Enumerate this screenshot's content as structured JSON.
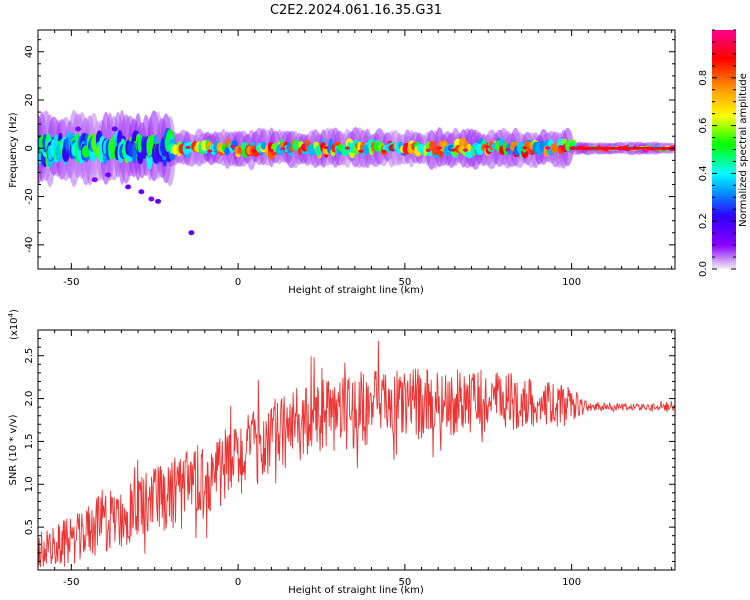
{
  "chart_data": [
    {
      "type": "heatmap",
      "title": "C2E2.2024.061.16.35.G31",
      "xlabel": "Height of straight line (km)",
      "ylabel": "Frequency (Hz)",
      "xlim": [
        -60,
        131
      ],
      "ylim": [
        -50,
        49
      ],
      "xticks": [
        -50,
        0,
        50,
        100
      ],
      "yticks": [
        -40,
        -20,
        0,
        20,
        40
      ],
      "colorbar": {
        "label": "Normalized spectral amplitude",
        "range": [
          0.0,
          1.0
        ],
        "ticks": [
          0.0,
          0.2,
          0.4,
          0.6,
          0.8
        ],
        "colormap": [
          "#f0f0f0",
          "#8a00ff",
          "#3000ff",
          "#0090ff",
          "#00ffff",
          "#00ff00",
          "#ffff00",
          "#ff9000",
          "#ff0000",
          "#ff0090"
        ]
      },
      "ridge": {
        "description_center_frequency_hz": 0,
        "segments": [
          {
            "x": [
              -60,
              -20
            ],
            "spread_hz": 8,
            "peak_amplitude": 0.55
          },
          {
            "x": [
              -20,
              100
            ],
            "spread_hz": 4,
            "peak_amplitude": 0.85
          },
          {
            "x": [
              100,
              131
            ],
            "spread_hz": 1,
            "peak_amplitude": 0.95
          }
        ],
        "scatter_points": [
          {
            "x": -43,
            "y": -13
          },
          {
            "x": -39,
            "y": -11
          },
          {
            "x": -33,
            "y": -16
          },
          {
            "x": -29,
            "y": -18
          },
          {
            "x": -26,
            "y": -21
          },
          {
            "x": -24,
            "y": -22
          },
          {
            "x": -14,
            "y": -35
          },
          {
            "x": -48,
            "y": 8
          },
          {
            "x": -37,
            "y": 8
          }
        ]
      }
    },
    {
      "type": "line",
      "xlabel": "Height of straight line (km)",
      "ylabel": "SNR (10 * v/v)",
      "yscale_label": "(x10",
      "yscale_exp": "4",
      "yscale_close": ")",
      "xlim": [
        -60,
        131
      ],
      "ylim": [
        0,
        2.8
      ],
      "xticks": [
        -50,
        0,
        50,
        100
      ],
      "yticks": [
        0.5,
        1.0,
        1.5,
        2.0,
        2.5
      ],
      "color": "#ee3333",
      "trend": {
        "x": [
          -60,
          -50,
          -40,
          -30,
          -20,
          -10,
          0,
          10,
          20,
          30,
          40,
          50,
          60,
          70,
          80,
          90,
          100,
          105,
          110,
          120,
          131
        ],
        "y": [
          0.2,
          0.35,
          0.55,
          0.7,
          0.85,
          1.05,
          1.3,
          1.55,
          1.72,
          1.82,
          1.9,
          1.93,
          1.95,
          1.97,
          1.97,
          1.95,
          1.93,
          1.9,
          1.9,
          1.9,
          1.9
        ]
      },
      "noise_amplitude": {
        "x": [
          -60,
          -20,
          0,
          40,
          80,
          100,
          105,
          131
        ],
        "a": [
          0.25,
          0.45,
          0.45,
          0.45,
          0.35,
          0.2,
          0.05,
          0.04
        ]
      }
    }
  ]
}
